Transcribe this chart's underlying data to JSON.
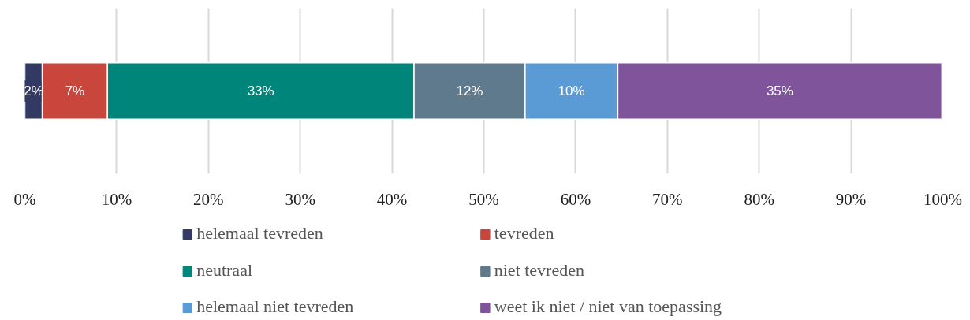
{
  "chart_data": {
    "type": "bar",
    "orientation": "horizontal",
    "stacked": true,
    "categories": [
      null
    ],
    "series": [
      {
        "name": "helemaal tevreden",
        "color": "#323a64",
        "values": [
          1.9
        ],
        "value_labels": [
          "2%"
        ]
      },
      {
        "name": "tevreden",
        "color": "#c9463d",
        "values": [
          7.1
        ],
        "value_labels": [
          "7%"
        ]
      },
      {
        "name": "neutraal",
        "color": "#00857a",
        "values": [
          33.4
        ],
        "value_labels": [
          "33%"
        ]
      },
      {
        "name": "niet tevreden",
        "color": "#5f7a8c",
        "values": [
          12.1
        ],
        "value_labels": [
          "12%"
        ]
      },
      {
        "name": "helemaal niet tevreden",
        "color": "#5b9bd5",
        "values": [
          10.1
        ],
        "value_labels": [
          "10%"
        ]
      },
      {
        "name": "weet ik niet / niet van toepassing",
        "color": "#7f549b",
        "values": [
          35.3
        ],
        "value_labels": [
          "35%"
        ]
      }
    ],
    "xlim": [
      0,
      100
    ],
    "xticks": [
      {
        "value": 0,
        "label": "0%"
      },
      {
        "value": 10,
        "label": "10%"
      },
      {
        "value": 20,
        "label": "20%"
      },
      {
        "value": 30,
        "label": "30%"
      },
      {
        "value": 40,
        "label": "40%"
      },
      {
        "value": 50,
        "label": "50%"
      },
      {
        "value": 60,
        "label": "60%"
      },
      {
        "value": 70,
        "label": "70%"
      },
      {
        "value": 80,
        "label": "80%"
      },
      {
        "value": 90,
        "label": "90%"
      },
      {
        "value": 100,
        "label": "100%"
      }
    ],
    "grid": "x",
    "legend": "bottom"
  }
}
